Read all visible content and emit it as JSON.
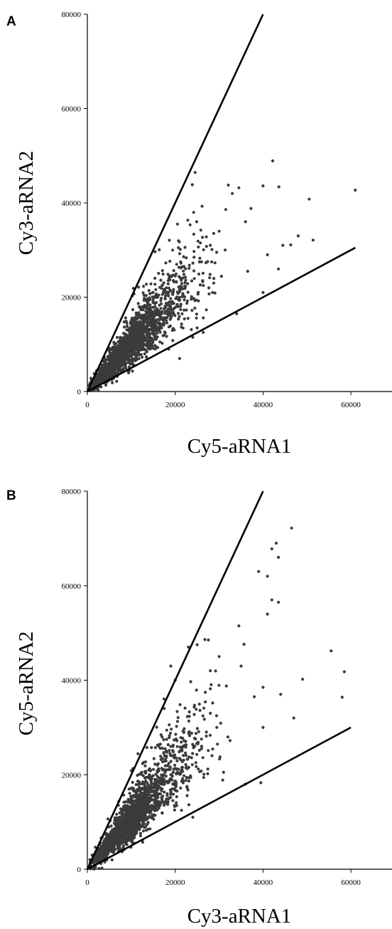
{
  "chart_data": [
    {
      "type": "scatter",
      "panel_label": "A",
      "xlabel": "Cy5-aRNA1",
      "ylabel": "Cy3-aRNA2",
      "xlim": [
        0,
        70000
      ],
      "ylim": [
        0,
        80000
      ],
      "x_ticks": [
        "0",
        "20000",
        "40000",
        "60000"
      ],
      "y_ticks": [
        "0",
        "20000",
        "40000",
        "60000",
        "80000"
      ],
      "grid": false,
      "legend": "none",
      "reference_lines": [
        {
          "slope": 2.0,
          "x_end": 40000
        },
        {
          "slope": 0.5,
          "x_end": 61000
        }
      ],
      "series": [
        {
          "point_count": 1800,
          "color": "#3b3b3b",
          "points": [
            [
              61000,
              42700
            ],
            [
              42200,
              48900
            ],
            [
              40000,
              43600
            ],
            [
              43600,
              43400
            ],
            [
              34500,
              43200
            ],
            [
              33000,
              42000
            ],
            [
              31500,
              38600
            ],
            [
              24200,
              38000
            ],
            [
              50500,
              40800
            ],
            [
              48000,
              33000
            ],
            [
              46300,
              31100
            ],
            [
              51400,
              32100
            ],
            [
              44500,
              31000
            ],
            [
              41000,
              29000
            ],
            [
              36000,
              36000
            ],
            [
              30000,
              34000
            ],
            [
              28000,
              31000
            ],
            [
              26000,
              27500
            ],
            [
              22000,
              26500
            ],
            [
              20000,
              24500
            ],
            [
              18000,
              22000
            ],
            [
              16000,
              20000
            ],
            [
              15000,
              16000
            ],
            [
              25000,
              13500
            ],
            [
              34000,
              16500
            ],
            [
              40000,
              21000
            ],
            [
              43500,
              26000
            ],
            [
              13000,
              18000
            ],
            [
              11000,
              11000
            ],
            [
              9000,
              14500
            ],
            [
              18500,
              9000
            ],
            [
              24000,
              11500
            ],
            [
              28500,
              21000
            ],
            [
              36500,
              25500
            ],
            [
              21000,
              7000
            ]
          ]
        }
      ]
    },
    {
      "type": "scatter",
      "panel_label": "B",
      "xlabel": "Cy3-aRNA1",
      "ylabel": "Cy5-aRNA2",
      "xlim": [
        0,
        70000
      ],
      "ylim": [
        0,
        80000
      ],
      "x_ticks": [
        "0",
        "20000",
        "40000",
        "60000"
      ],
      "y_ticks": [
        "0",
        "20000",
        "40000",
        "60000",
        "80000"
      ],
      "grid": false,
      "legend": "none",
      "reference_lines": [
        {
          "slope": 2.0,
          "x_end": 40000
        },
        {
          "slope": 0.5,
          "x_end": 60000
        }
      ],
      "series": [
        {
          "point_count": 1800,
          "color": "#3b3b3b",
          "points": [
            [
              46500,
              72200
            ],
            [
              43000,
              69000
            ],
            [
              42000,
              67800
            ],
            [
              43500,
              66000
            ],
            [
              39000,
              63000
            ],
            [
              41000,
              62000
            ],
            [
              42000,
              57000
            ],
            [
              43500,
              56500
            ],
            [
              41000,
              54000
            ],
            [
              34500,
              51500
            ],
            [
              55500,
              46200
            ],
            [
              58500,
              41800
            ],
            [
              58000,
              36400
            ],
            [
              49000,
              40200
            ],
            [
              47000,
              32000
            ],
            [
              40000,
              38500
            ],
            [
              38000,
              36500
            ],
            [
              35000,
              43000
            ],
            [
              30000,
              45000
            ],
            [
              28000,
              42000
            ],
            [
              25000,
              47500
            ],
            [
              19000,
              43000
            ],
            [
              20000,
              40000
            ],
            [
              17500,
              34000
            ],
            [
              40000,
              30000
            ],
            [
              44000,
              37000
            ],
            [
              36000,
              18000
            ],
            [
              39500,
              18300
            ],
            [
              31000,
              20500
            ],
            [
              26000,
              25500
            ],
            [
              22000,
              29000
            ],
            [
              14000,
              21000
            ],
            [
              17000,
              28000
            ],
            [
              12000,
              12000
            ],
            [
              24000,
              11000
            ],
            [
              9000,
              10000
            ],
            [
              28000,
              33000
            ],
            [
              32000,
              28000
            ]
          ]
        }
      ]
    }
  ]
}
